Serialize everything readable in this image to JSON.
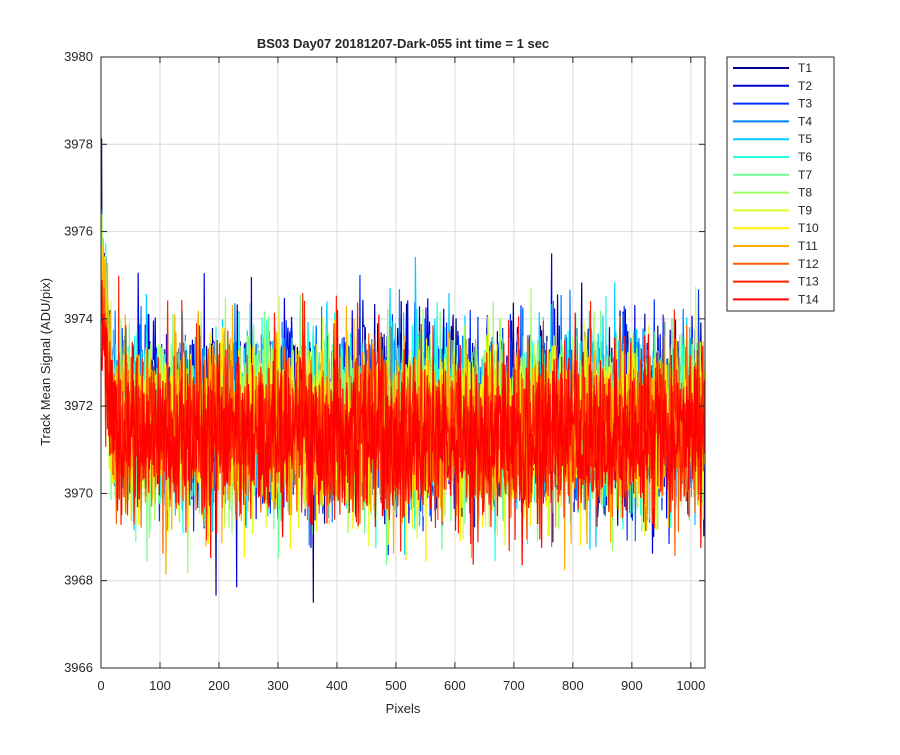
{
  "chart_data": {
    "type": "line",
    "title": "BS03 Day07 20181207-Dark-055 int time = 1 sec",
    "xlabel": "Pixels",
    "ylabel": "Track Mean Signal (ADU/pix)",
    "xlim": [
      0,
      1024
    ],
    "ylim": [
      3966,
      3980
    ],
    "xticks": [
      0,
      100,
      200,
      300,
      400,
      500,
      600,
      700,
      800,
      900,
      1000
    ],
    "yticks": [
      3966,
      3968,
      3970,
      3972,
      3974,
      3976,
      3978,
      3980
    ],
    "grid": true,
    "legend_position": "outside-top-right",
    "x_range": [
      1,
      1024
    ],
    "series_summary": "Noisy traces centered near 3971.5 ADU/pix, roughly 3968-3976 range; slightly elevated (up to ~3978) in the first ~20 pixels",
    "series": [
      {
        "name": "T1",
        "color": "#00008f",
        "mean": 3971.9,
        "std": 1.05
      },
      {
        "name": "T2",
        "color": "#0000df",
        "mean": 3971.9,
        "std": 1.05
      },
      {
        "name": "T3",
        "color": "#0030ff",
        "mean": 3971.8,
        "std": 1.0
      },
      {
        "name": "T4",
        "color": "#0080ff",
        "mean": 3971.8,
        "std": 1.0
      },
      {
        "name": "T5",
        "color": "#00cfff",
        "mean": 3971.8,
        "std": 1.0
      },
      {
        "name": "T6",
        "color": "#20ffdf",
        "mean": 3971.7,
        "std": 0.95
      },
      {
        "name": "T7",
        "color": "#70ff8f",
        "mean": 3971.7,
        "std": 0.95
      },
      {
        "name": "T8",
        "color": "#9fff60",
        "mean": 3971.6,
        "std": 0.95
      },
      {
        "name": "T9",
        "color": "#dfff20",
        "mean": 3971.6,
        "std": 0.95
      },
      {
        "name": "T10",
        "color": "#ffef00",
        "mean": 3971.5,
        "std": 0.95
      },
      {
        "name": "T11",
        "color": "#ffaf00",
        "mean": 3971.5,
        "std": 0.95
      },
      {
        "name": "T12",
        "color": "#ff6000",
        "mean": 3971.4,
        "std": 0.95
      },
      {
        "name": "T13",
        "color": "#ff2000",
        "mean": 3971.4,
        "std": 0.95
      },
      {
        "name": "T14",
        "color": "#ff0000",
        "mean": 3971.3,
        "std": 0.9
      }
    ]
  }
}
